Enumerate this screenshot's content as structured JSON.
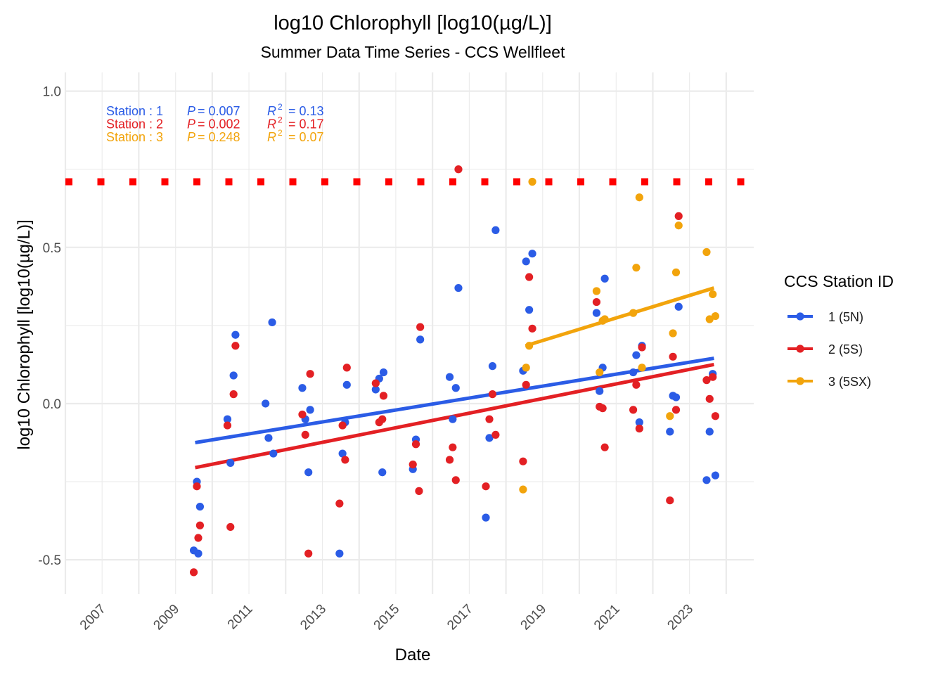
{
  "chart_data": {
    "type": "scatter",
    "title": "log10 Chlorophyll [log10(µg/L)]",
    "subtitle": "Summer Data Time Series - CCS Wellfleet",
    "xlabel": "Date",
    "ylabel": "log10 Chlorophyll [log10(µg/L)]",
    "x_is_date": true,
    "xlim": [
      "2006-01-01",
      "2024-10-01"
    ],
    "ylim": [
      -0.61,
      1.06
    ],
    "x_tick_labels": [
      "2007",
      "2009",
      "2011",
      "2013",
      "2015",
      "2017",
      "2019",
      "2021",
      "2023"
    ],
    "y_tick_labels": [
      "-0.5",
      "0.0",
      "0.5",
      "1.0"
    ],
    "y_ticks": [
      -0.5,
      0,
      0.5,
      1.0
    ],
    "grid": true,
    "legend_title": "CCS Station ID",
    "legend_position": "right",
    "reference_line": {
      "y": 0.71,
      "style": "dotted",
      "color": "#ff0000"
    },
    "annotations": [
      {
        "station": "Station : 1",
        "p_label": "P",
        "p": "= 0.007",
        "r2_label": "R",
        "r2": "= 0.13",
        "color": "#2b5ce6"
      },
      {
        "station": "Station : 2",
        "p_label": "P",
        "p": "= 0.002",
        "r2_label": "R",
        "r2": "= 0.17",
        "color": "#e32024"
      },
      {
        "station": "Station : 3",
        "p_label": "P",
        "p": "= 0.248",
        "r2_label": "R",
        "r2": "= 0.07",
        "color": "#f2a40c"
      }
    ],
    "series": [
      {
        "name": "1 (5N)",
        "color": "#2b5ce6",
        "trend": {
          "x": [
            "2009-07-15",
            "2023-09-01"
          ],
          "y": [
            -0.125,
            0.145
          ]
        },
        "points": [
          {
            "x": "2009-07-01",
            "y": -0.47
          },
          {
            "x": "2009-08-01",
            "y": -0.25
          },
          {
            "x": "2009-08-15",
            "y": -0.48
          },
          {
            "x": "2009-09-01",
            "y": -0.33
          },
          {
            "x": "2010-06-01",
            "y": -0.05
          },
          {
            "x": "2010-07-01",
            "y": -0.19
          },
          {
            "x": "2010-08-01",
            "y": 0.09
          },
          {
            "x": "2010-08-20",
            "y": 0.22
          },
          {
            "x": "2011-06-15",
            "y": 0.0
          },
          {
            "x": "2011-07-15",
            "y": -0.11
          },
          {
            "x": "2011-08-20",
            "y": 0.26
          },
          {
            "x": "2011-09-01",
            "y": -0.16
          },
          {
            "x": "2012-06-15",
            "y": 0.05
          },
          {
            "x": "2012-07-15",
            "y": -0.05
          },
          {
            "x": "2012-08-15",
            "y": -0.22
          },
          {
            "x": "2012-09-01",
            "y": -0.02
          },
          {
            "x": "2013-06-20",
            "y": -0.48
          },
          {
            "x": "2013-07-20",
            "y": -0.16
          },
          {
            "x": "2013-08-15",
            "y": -0.06
          },
          {
            "x": "2013-09-01",
            "y": 0.06
          },
          {
            "x": "2014-06-15",
            "y": 0.045
          },
          {
            "x": "2014-07-20",
            "y": 0.08
          },
          {
            "x": "2014-08-20",
            "y": -0.22
          },
          {
            "x": "2014-09-01",
            "y": 0.1
          },
          {
            "x": "2015-06-20",
            "y": -0.21
          },
          {
            "x": "2015-07-20",
            "y": -0.115
          },
          {
            "x": "2015-09-01",
            "y": 0.205
          },
          {
            "x": "2016-06-20",
            "y": 0.085
          },
          {
            "x": "2016-07-20",
            "y": -0.05
          },
          {
            "x": "2016-08-20",
            "y": 0.05
          },
          {
            "x": "2016-09-15",
            "y": 0.37
          },
          {
            "x": "2017-06-15",
            "y": -0.365
          },
          {
            "x": "2017-07-20",
            "y": -0.11
          },
          {
            "x": "2017-08-20",
            "y": 0.12
          },
          {
            "x": "2017-09-20",
            "y": 0.555
          },
          {
            "x": "2018-06-20",
            "y": 0.105
          },
          {
            "x": "2018-07-20",
            "y": 0.455
          },
          {
            "x": "2018-08-20",
            "y": 0.3
          },
          {
            "x": "2018-09-20",
            "y": 0.48
          },
          {
            "x": "2020-06-20",
            "y": 0.29
          },
          {
            "x": "2020-07-20",
            "y": 0.04
          },
          {
            "x": "2020-08-20",
            "y": 0.115
          },
          {
            "x": "2020-09-10",
            "y": 0.4
          },
          {
            "x": "2021-06-20",
            "y": 0.1
          },
          {
            "x": "2021-07-20",
            "y": 0.155
          },
          {
            "x": "2021-08-20",
            "y": -0.06
          },
          {
            "x": "2021-09-15",
            "y": 0.185
          },
          {
            "x": "2022-06-20",
            "y": -0.09
          },
          {
            "x": "2022-07-20",
            "y": 0.025
          },
          {
            "x": "2022-08-20",
            "y": 0.02
          },
          {
            "x": "2022-09-15",
            "y": 0.31
          },
          {
            "x": "2023-06-20",
            "y": -0.245
          },
          {
            "x": "2023-07-20",
            "y": -0.09
          },
          {
            "x": "2023-08-20",
            "y": 0.095
          },
          {
            "x": "2023-09-15",
            "y": -0.23
          }
        ]
      },
      {
        "name": "2 (5S)",
        "color": "#e32024",
        "trend": {
          "x": [
            "2009-07-15",
            "2023-09-01"
          ],
          "y": [
            -0.205,
            0.125
          ]
        },
        "points": [
          {
            "x": "2009-07-01",
            "y": -0.54
          },
          {
            "x": "2009-08-01",
            "y": -0.265
          },
          {
            "x": "2009-08-15",
            "y": -0.43
          },
          {
            "x": "2009-09-01",
            "y": -0.39
          },
          {
            "x": "2010-06-01",
            "y": -0.07
          },
          {
            "x": "2010-07-01",
            "y": -0.395
          },
          {
            "x": "2010-08-01",
            "y": 0.03
          },
          {
            "x": "2010-08-20",
            "y": 0.185
          },
          {
            "x": "2012-06-15",
            "y": -0.035
          },
          {
            "x": "2012-07-15",
            "y": -0.1
          },
          {
            "x": "2012-08-15",
            "y": -0.48
          },
          {
            "x": "2012-09-01",
            "y": 0.095
          },
          {
            "x": "2013-06-20",
            "y": -0.32
          },
          {
            "x": "2013-07-20",
            "y": -0.07
          },
          {
            "x": "2013-08-15",
            "y": -0.18
          },
          {
            "x": "2013-09-01",
            "y": 0.115
          },
          {
            "x": "2014-06-15",
            "y": 0.065
          },
          {
            "x": "2014-07-20",
            "y": -0.06
          },
          {
            "x": "2014-08-20",
            "y": -0.05
          },
          {
            "x": "2014-09-01",
            "y": 0.025
          },
          {
            "x": "2015-06-20",
            "y": -0.195
          },
          {
            "x": "2015-07-20",
            "y": -0.13
          },
          {
            "x": "2015-08-20",
            "y": -0.28
          },
          {
            "x": "2015-09-01",
            "y": 0.245
          },
          {
            "x": "2016-06-20",
            "y": -0.18
          },
          {
            "x": "2016-07-20",
            "y": -0.14
          },
          {
            "x": "2016-08-20",
            "y": -0.245
          },
          {
            "x": "2016-09-15",
            "y": 0.75
          },
          {
            "x": "2017-06-15",
            "y": -0.265
          },
          {
            "x": "2017-07-20",
            "y": -0.05
          },
          {
            "x": "2017-08-20",
            "y": 0.03
          },
          {
            "x": "2017-09-20",
            "y": -0.1
          },
          {
            "x": "2018-06-20",
            "y": -0.185
          },
          {
            "x": "2018-07-20",
            "y": 0.06
          },
          {
            "x": "2018-08-20",
            "y": 0.405
          },
          {
            "x": "2018-09-20",
            "y": 0.24
          },
          {
            "x": "2020-06-20",
            "y": 0.325
          },
          {
            "x": "2020-07-20",
            "y": -0.01
          },
          {
            "x": "2020-08-20",
            "y": -0.015
          },
          {
            "x": "2020-09-10",
            "y": -0.14
          },
          {
            "x": "2021-06-20",
            "y": -0.02
          },
          {
            "x": "2021-07-20",
            "y": 0.06
          },
          {
            "x": "2021-08-20",
            "y": -0.08
          },
          {
            "x": "2021-09-15",
            "y": 0.18
          },
          {
            "x": "2022-06-20",
            "y": -0.31
          },
          {
            "x": "2022-07-20",
            "y": 0.15
          },
          {
            "x": "2022-08-20",
            "y": -0.02
          },
          {
            "x": "2022-09-15",
            "y": 0.6
          },
          {
            "x": "2023-06-20",
            "y": 0.075
          },
          {
            "x": "2023-07-20",
            "y": 0.015
          },
          {
            "x": "2023-08-20",
            "y": 0.085
          },
          {
            "x": "2023-09-15",
            "y": -0.04
          }
        ]
      },
      {
        "name": "3 (5SX)",
        "color": "#f2a40c",
        "trend": {
          "x": [
            "2018-07-15",
            "2023-09-01"
          ],
          "y": [
            0.185,
            0.37
          ]
        },
        "points": [
          {
            "x": "2018-06-20",
            "y": -0.275
          },
          {
            "x": "2018-07-20",
            "y": 0.115
          },
          {
            "x": "2018-08-20",
            "y": 0.185
          },
          {
            "x": "2018-09-20",
            "y": 0.71
          },
          {
            "x": "2020-06-20",
            "y": 0.36
          },
          {
            "x": "2020-07-20",
            "y": 0.1
          },
          {
            "x": "2020-08-20",
            "y": 0.265
          },
          {
            "x": "2020-09-10",
            "y": 0.27
          },
          {
            "x": "2021-06-20",
            "y": 0.29
          },
          {
            "x": "2021-07-20",
            "y": 0.435
          },
          {
            "x": "2021-08-20",
            "y": 0.66
          },
          {
            "x": "2021-09-15",
            "y": 0.115
          },
          {
            "x": "2022-06-20",
            "y": -0.04
          },
          {
            "x": "2022-07-20",
            "y": 0.225
          },
          {
            "x": "2022-08-20",
            "y": 0.42
          },
          {
            "x": "2022-09-15",
            "y": 0.57
          },
          {
            "x": "2023-06-20",
            "y": 0.485
          },
          {
            "x": "2023-07-20",
            "y": 0.27
          },
          {
            "x": "2023-08-20",
            "y": 0.35
          },
          {
            "x": "2023-09-15",
            "y": 0.28
          }
        ]
      }
    ]
  }
}
